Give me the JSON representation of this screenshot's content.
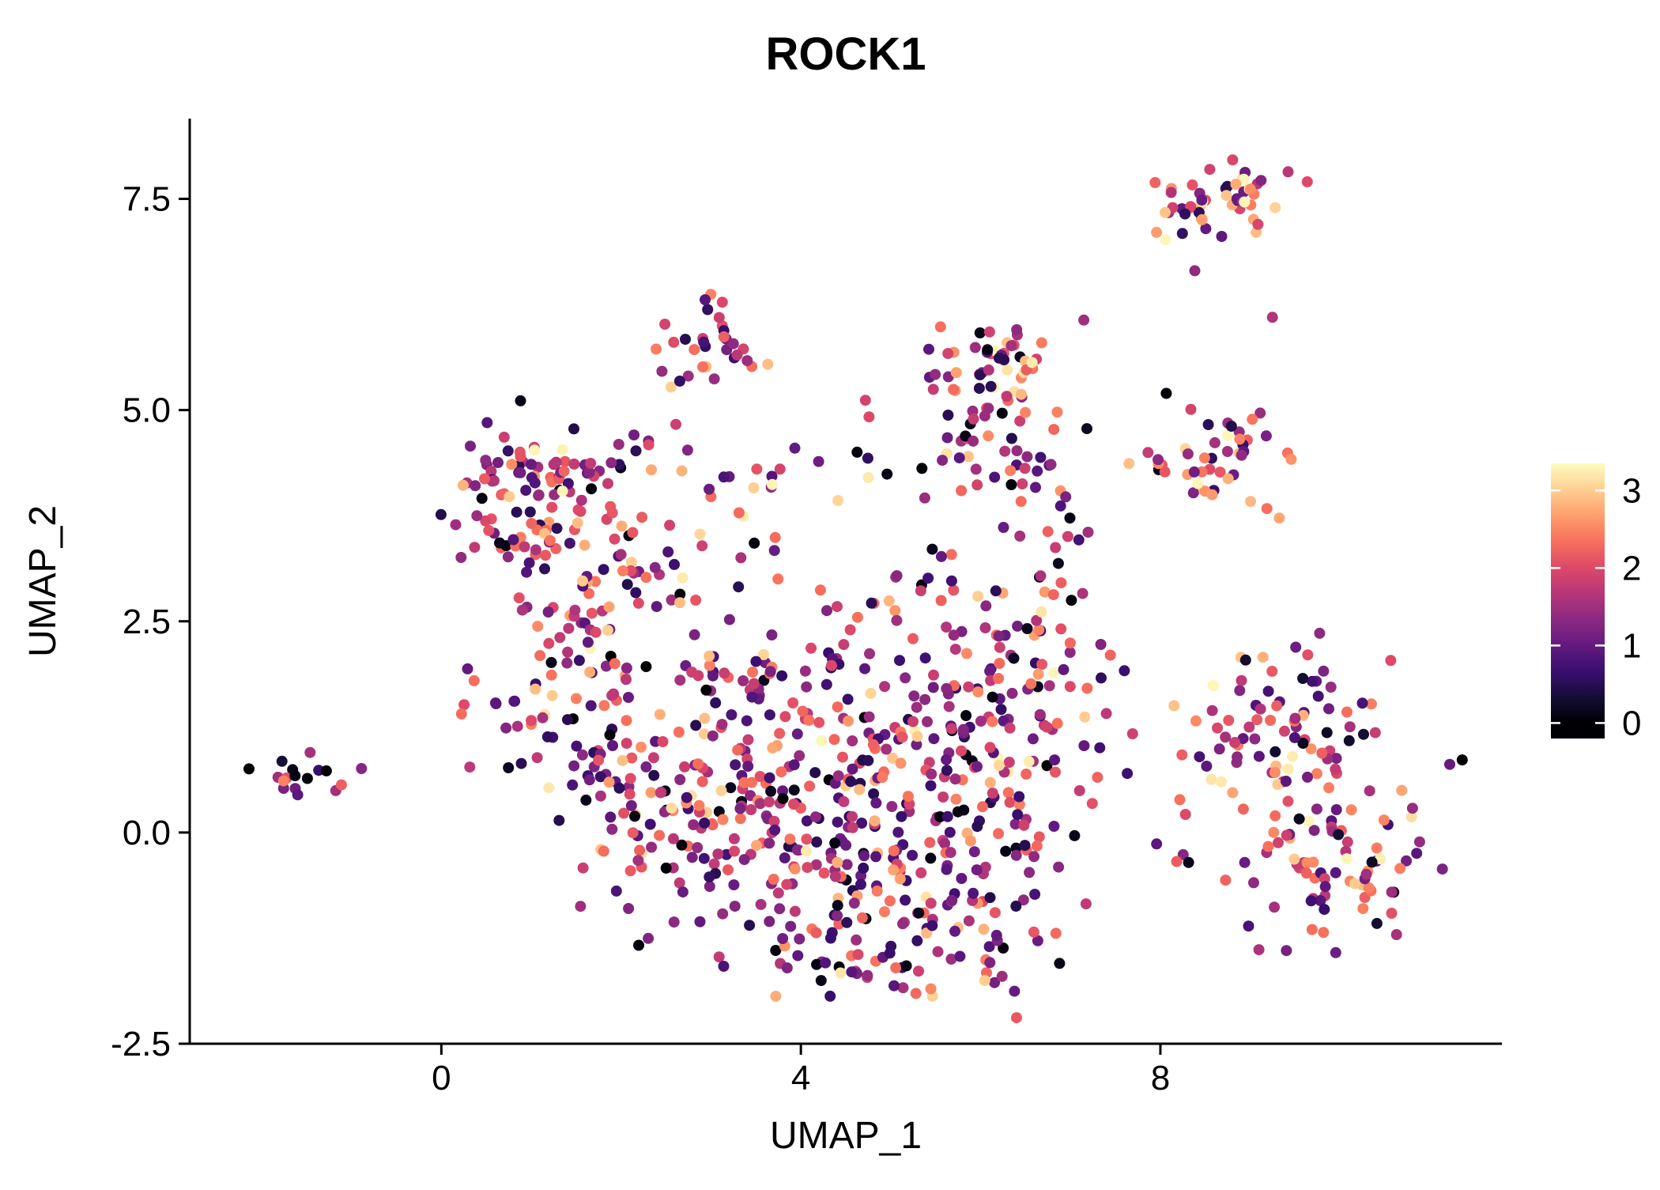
{
  "chart_data": {
    "type": "scatter",
    "title": "ROCK1",
    "xlabel": "UMAP_1",
    "ylabel": "UMAP_2",
    "xlim": [
      -2.8,
      11.8
    ],
    "ylim": [
      -2.5,
      8.45
    ],
    "grid": false,
    "x_ticks": [
      {
        "v": 0,
        "label": "0"
      },
      {
        "v": 4,
        "label": "4"
      },
      {
        "v": 8,
        "label": "8"
      }
    ],
    "y_ticks": [
      {
        "v": -2.5,
        "label": "-2.5"
      },
      {
        "v": 0,
        "label": "0.0"
      },
      {
        "v": 2.5,
        "label": "2.5"
      },
      {
        "v": 5,
        "label": "5.0"
      },
      {
        "v": 7.5,
        "label": "7.5"
      }
    ],
    "legend": {
      "type": "colorbar",
      "position": "right",
      "bar_value_range": [
        -0.2,
        3.35
      ],
      "ticks": [
        {
          "v": 0,
          "label": "0"
        },
        {
          "v": 1,
          "label": "1"
        },
        {
          "v": 2,
          "label": "2"
        },
        {
          "v": 3,
          "label": "3"
        }
      ]
    },
    "color_scale": {
      "name": "magma",
      "domain": [
        0,
        3.35
      ],
      "stops": [
        [
          0.0,
          "#000004"
        ],
        [
          0.1,
          "#140e36"
        ],
        [
          0.2,
          "#3b0f70"
        ],
        [
          0.3,
          "#641a80"
        ],
        [
          0.4,
          "#8c2981"
        ],
        [
          0.5,
          "#b73779"
        ],
        [
          0.6,
          "#de4968"
        ],
        [
          0.7,
          "#f7705c"
        ],
        [
          0.8,
          "#fe9f6d"
        ],
        [
          0.9,
          "#fecf92"
        ],
        [
          1.0,
          "#fcfdbf"
        ]
      ]
    },
    "colors": {
      "background": "#ffffff",
      "text": "#000000",
      "axis": "#000000"
    },
    "point_radius_px": 7,
    "point_count": 1355,
    "seed": 42,
    "value_distribution": {
      "near_zero_frac": 0.08,
      "high_frac": 0.18,
      "zero_range": [
        0.0,
        0.2
      ],
      "high_range": [
        2.2,
        3.3
      ],
      "mid_range": [
        0.45,
        2.4
      ]
    },
    "cluster_fields": [
      "cx",
      "cy",
      "sx",
      "sy",
      "n",
      "value_bias"
    ],
    "clusters": [
      [
        -1.55,
        0.68,
        0.18,
        0.13,
        16,
        -0.7
      ],
      [
        -0.9,
        0.8,
        0.02,
        0.02,
        1,
        0.6
      ],
      [
        1.15,
        3.8,
        0.45,
        0.5,
        85,
        0
      ],
      [
        1.0,
        4.35,
        0.5,
        0.18,
        30,
        0
      ],
      [
        1.5,
        2.9,
        0.4,
        0.3,
        25,
        0
      ],
      [
        0.5,
        1.55,
        0.2,
        0.25,
        9,
        0
      ],
      [
        2.95,
        5.75,
        0.3,
        0.28,
        32,
        0
      ],
      [
        2.5,
        4.5,
        0.3,
        0.25,
        8,
        0
      ],
      [
        3.9,
        4.25,
        0.8,
        0.15,
        18,
        0
      ],
      [
        3.3,
        3.3,
        0.6,
        0.4,
        14,
        0
      ],
      [
        4.7,
        5.0,
        0.2,
        0.12,
        2,
        -0.5
      ],
      [
        6.1,
        4.7,
        0.4,
        0.5,
        60,
        0
      ],
      [
        6.2,
        5.65,
        0.35,
        0.25,
        30,
        0
      ],
      [
        6.7,
        3.7,
        0.25,
        0.35,
        15,
        0
      ],
      [
        8.65,
        7.5,
        0.45,
        0.22,
        55,
        0.4
      ],
      [
        8.35,
        6.7,
        0.05,
        0.05,
        1,
        0.8
      ],
      [
        9.25,
        6.05,
        0.04,
        0.04,
        1,
        -0.3
      ],
      [
        8.75,
        4.35,
        0.35,
        0.35,
        40,
        0.5
      ],
      [
        7.85,
        4.3,
        0.12,
        0.25,
        4,
        0
      ],
      [
        8.6,
        5.1,
        0.3,
        0.2,
        3,
        0
      ],
      [
        9.5,
        1.3,
        0.55,
        0.45,
        70,
        0.15
      ],
      [
        9.9,
        -0.2,
        0.6,
        0.5,
        85,
        0.15
      ],
      [
        8.5,
        0.9,
        0.2,
        0.3,
        10,
        0
      ],
      [
        8.2,
        -0.1,
        0.2,
        0.3,
        5,
        0
      ],
      [
        11.3,
        0.85,
        0.03,
        0.03,
        1,
        -3
      ],
      [
        1.6,
        2.1,
        0.45,
        0.35,
        35,
        0
      ],
      [
        1.8,
        0.9,
        0.5,
        0.45,
        55,
        0
      ],
      [
        2.5,
        -0.1,
        0.55,
        0.5,
        65,
        0
      ],
      [
        3.4,
        0.6,
        0.55,
        0.55,
        70,
        0
      ],
      [
        4.3,
        -0.3,
        0.6,
        0.55,
        80,
        0
      ],
      [
        5.3,
        0.3,
        0.6,
        0.6,
        85,
        0
      ],
      [
        4.7,
        1.4,
        0.6,
        0.45,
        60,
        0
      ],
      [
        6.2,
        1.7,
        0.45,
        0.5,
        55,
        0
      ],
      [
        5.8,
        -1.0,
        0.5,
        0.4,
        55,
        0
      ],
      [
        4.4,
        -1.4,
        0.6,
        0.3,
        40,
        0
      ],
      [
        3.0,
        1.9,
        0.4,
        0.35,
        30,
        0
      ],
      [
        6.5,
        0.3,
        0.4,
        0.5,
        40,
        0
      ],
      [
        7.0,
        1.9,
        0.3,
        0.4,
        18,
        0
      ],
      [
        2.2,
        2.9,
        0.3,
        0.25,
        10,
        0
      ],
      [
        4.35,
        2.6,
        0.5,
        0.3,
        14,
        0
      ],
      [
        5.5,
        2.9,
        0.4,
        0.3,
        12,
        0
      ],
      [
        6.9,
        2.9,
        0.2,
        0.25,
        8,
        0
      ],
      [
        7.6,
        1.3,
        0.15,
        0.3,
        3,
        0
      ]
    ]
  }
}
